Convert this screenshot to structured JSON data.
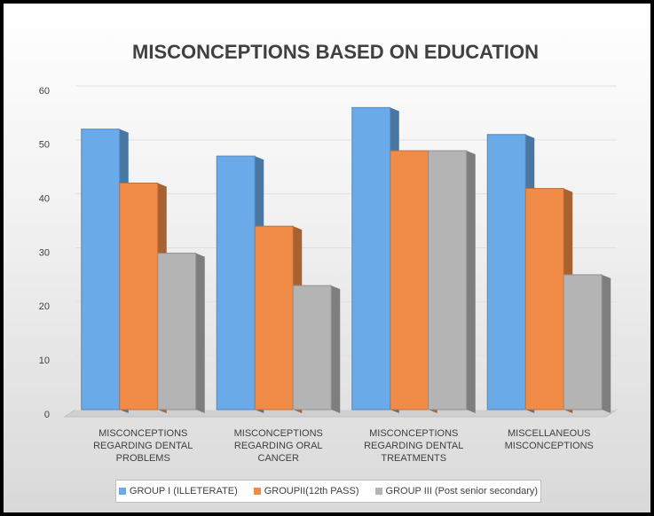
{
  "chart_data": {
    "type": "bar",
    "title": "MISCONCEPTIONS BASED ON EDUCATION",
    "categories": [
      "MISCONCEPTIONS REGARDING DENTAL PROBLEMS",
      "MISCONCEPTIONS REGARDING ORAL CANCER",
      "MISCONCEPTIONS REGARDING DENTAL TREATMENTS",
      "MISCELLANEOUS MISCONCEPTIONS"
    ],
    "series": [
      {
        "name": "GROUP I (ILLETERATE)",
        "color": "#6aaae8",
        "values": [
          52,
          47,
          56,
          51
        ]
      },
      {
        "name": "GROUPII(12th PASS)",
        "color": "#f08c48",
        "values": [
          42,
          34,
          48,
          41
        ]
      },
      {
        "name": "GROUP III (Post senior secondary)",
        "color": "#b4b4b4",
        "values": [
          29,
          23,
          48,
          25
        ]
      }
    ],
    "ylim": [
      0,
      60
    ],
    "yticks": [
      0,
      10,
      20,
      30,
      40,
      50,
      60
    ],
    "grid": true,
    "legend": "bottom"
  }
}
